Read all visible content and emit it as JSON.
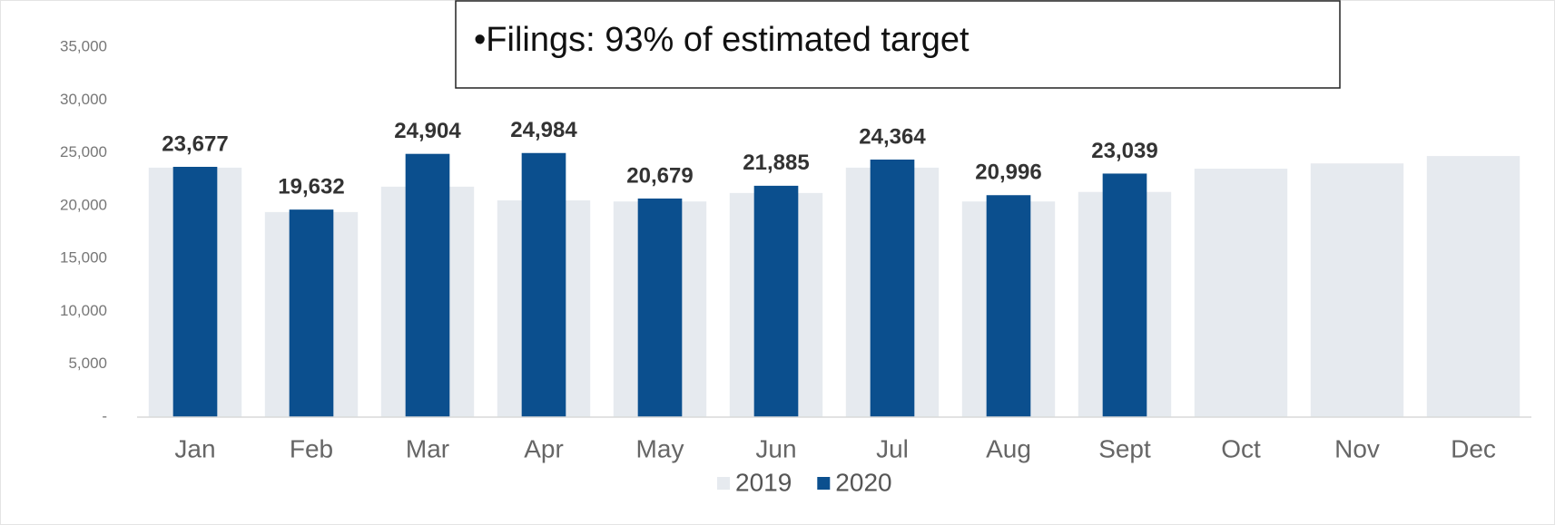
{
  "chart_data": {
    "type": "bar",
    "annotation": "•Filings: 93% of estimated target",
    "categories": [
      "Jan",
      "Feb",
      "Mar",
      "Apr",
      "May",
      "Jun",
      "Jul",
      "Aug",
      "Sept",
      "Oct",
      "Nov",
      "Dec"
    ],
    "series": [
      {
        "name": "2019",
        "color": "#e6eaef",
        "values": [
          23600,
          19400,
          21800,
          20500,
          20400,
          21200,
          23600,
          20400,
          21300,
          23500,
          24000,
          24700
        ]
      },
      {
        "name": "2020",
        "color": "#0b4f8e",
        "values": [
          23677,
          19632,
          24904,
          24984,
          20679,
          21885,
          24364,
          20996,
          23039,
          null,
          null,
          null
        ],
        "value_labels": [
          "23,677",
          "19,632",
          "24,904",
          "24,984",
          "20,679",
          "21,885",
          "24,364",
          "20,996",
          "23,039",
          null,
          null,
          null
        ]
      }
    ],
    "ylim": [
      0,
      35000
    ],
    "yticks": [
      {
        "value": 0,
        "label": "-"
      },
      {
        "value": 5000,
        "label": "5,000"
      },
      {
        "value": 10000,
        "label": "10,000"
      },
      {
        "value": 15000,
        "label": "15,000"
      },
      {
        "value": 20000,
        "label": "20,000"
      },
      {
        "value": 25000,
        "label": "25,000"
      },
      {
        "value": 30000,
        "label": "30,000"
      },
      {
        "value": 35000,
        "label": "35,000"
      }
    ],
    "grid": false,
    "legend": "bottom"
  }
}
